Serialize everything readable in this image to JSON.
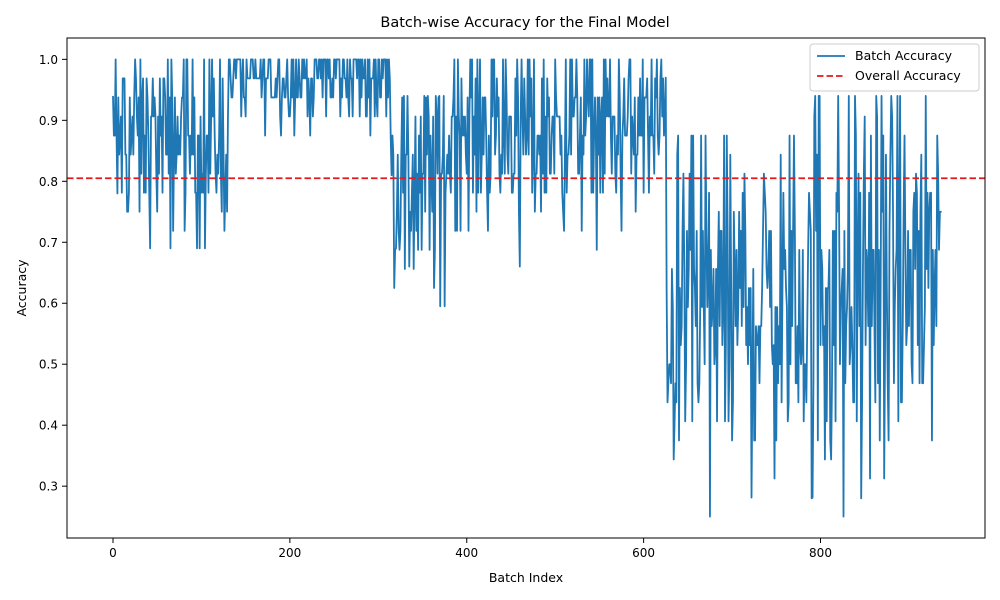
{
  "chart_data": {
    "type": "line",
    "title": "Batch-wise Accuracy for the Final Model",
    "xlabel": "Batch Index",
    "ylabel": "Accuracy",
    "xlim": [
      -52,
      986
    ],
    "ylim": [
      0.215,
      1.035
    ],
    "xticks": [
      0,
      200,
      400,
      600,
      800
    ],
    "yticks": [
      0.3,
      0.4,
      0.5,
      0.6,
      0.7,
      0.8,
      0.9,
      1.0
    ],
    "xtick_labels": [
      "0",
      "200",
      "400",
      "600",
      "800"
    ],
    "ytick_labels": [
      "0.3",
      "0.4",
      "0.5",
      "0.6",
      "0.7",
      "0.8",
      "0.9",
      "1.0"
    ],
    "grid": false,
    "legend_position": "top-right",
    "num_batches": 938,
    "reference_line": {
      "name": "Overall Accuracy",
      "value": 0.805,
      "color": "#e41a1c",
      "style": "dashed"
    },
    "series": [
      {
        "name": "Batch Accuracy",
        "color": "#1f77b4",
        "segments": [
          {
            "x_start": 0,
            "x_end": 130,
            "mean": 0.87,
            "spread": 0.055,
            "min": 0.69,
            "max": 1.0
          },
          {
            "x_start": 130,
            "x_end": 315,
            "mean": 0.975,
            "spread": 0.03,
            "min": 0.875,
            "max": 1.0
          },
          {
            "x_start": 315,
            "x_end": 380,
            "mean": 0.82,
            "spread": 0.08,
            "min": 0.595,
            "max": 0.94
          },
          {
            "x_start": 380,
            "x_end": 625,
            "mean": 0.89,
            "spread": 0.055,
            "min": 0.66,
            "max": 1.0
          },
          {
            "x_start": 625,
            "x_end": 790,
            "mean": 0.6,
            "spread": 0.1,
            "min": 0.25,
            "max": 0.875
          },
          {
            "x_start": 790,
            "x_end": 938,
            "mean": 0.65,
            "spread": 0.13,
            "min": 0.25,
            "max": 0.94
          }
        ],
        "points": [
          {
            "x": 0,
            "y": 0.94
          },
          {
            "x": 5,
            "y": 0.78
          },
          {
            "x": 80,
            "y": 1.0
          },
          {
            "x": 65,
            "y": 0.69
          },
          {
            "x": 104,
            "y": 0.69
          },
          {
            "x": 140,
            "y": 1.0
          },
          {
            "x": 300,
            "y": 1.0
          },
          {
            "x": 315,
            "y": 0.81
          },
          {
            "x": 320,
            "y": 0.69
          },
          {
            "x": 335,
            "y": 0.66
          },
          {
            "x": 370,
            "y": 0.595
          },
          {
            "x": 386,
            "y": 1.0
          },
          {
            "x": 460,
            "y": 0.66
          },
          {
            "x": 512,
            "y": 1.0
          },
          {
            "x": 625,
            "y": 0.97
          },
          {
            "x": 628,
            "y": 0.47
          },
          {
            "x": 640,
            "y": 0.375
          },
          {
            "x": 654,
            "y": 0.875
          },
          {
            "x": 675,
            "y": 0.25
          },
          {
            "x": 700,
            "y": 0.375
          },
          {
            "x": 790,
            "y": 0.28
          },
          {
            "x": 798,
            "y": 0.94
          },
          {
            "x": 826,
            "y": 0.25
          },
          {
            "x": 846,
            "y": 0.28
          },
          {
            "x": 919,
            "y": 0.94
          },
          {
            "x": 937,
            "y": 0.75
          }
        ]
      }
    ]
  }
}
